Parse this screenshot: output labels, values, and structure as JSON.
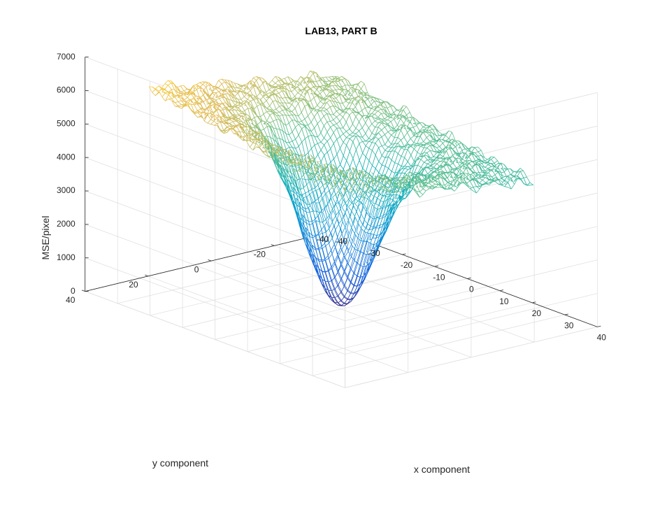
{
  "chart_data": {
    "type": "mesh",
    "title": "LAB13, PART B",
    "xlabel": "x component",
    "ylabel": "y component",
    "zlabel": "MSE/pixel",
    "xlim": [
      -40,
      40
    ],
    "ylim": [
      -40,
      40
    ],
    "zlim": [
      0,
      7000
    ],
    "xticks": [
      "-40",
      "-30",
      "-20",
      "-10",
      "0",
      "10",
      "20",
      "30",
      "40"
    ],
    "yticks": [
      "-40",
      "-20",
      "0",
      "20",
      "40"
    ],
    "zticks": [
      "0",
      "1000",
      "2000",
      "3000",
      "4000",
      "5000",
      "6000",
      "7000"
    ],
    "grid": true,
    "colormap": "parula",
    "surface": {
      "x_range": [
        -30,
        30
      ],
      "y_range": [
        -30,
        30
      ],
      "minimum": {
        "x": 0,
        "y": 0,
        "z": 100
      },
      "plateau_z_near_corner_x_neg30_y_pos30": 6200,
      "plateau_z_near_corner_x_pos30_y_neg30": 4200
    }
  }
}
